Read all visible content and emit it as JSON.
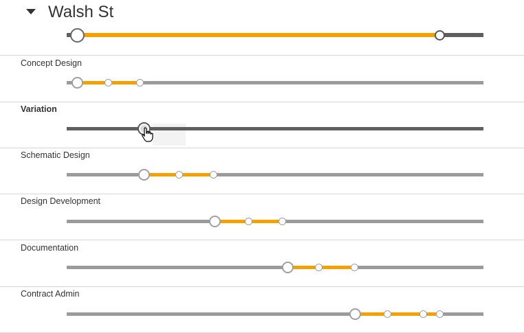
{
  "project": {
    "title": "Walsh St"
  },
  "main_timeline": {
    "start_fraction": 0.025,
    "end_fraction": 0.895,
    "colors": {
      "track": "#5f5f5f",
      "fill": "#f5a000"
    }
  },
  "phases": [
    {
      "label": "Concept Design",
      "bold": false,
      "handles": [
        0.025,
        0.1,
        0.176
      ]
    },
    {
      "label": "Variation",
      "bold": true,
      "handles": [
        0.186
      ],
      "active": true
    },
    {
      "label": "Schematic Design",
      "bold": false,
      "handles": [
        0.186,
        0.269,
        0.352
      ]
    },
    {
      "label": "Design Development",
      "bold": false,
      "handles": [
        0.355,
        0.437,
        0.518
      ]
    },
    {
      "label": "Documentation",
      "bold": false,
      "handles": [
        0.53,
        0.605,
        0.69
      ]
    },
    {
      "label": "Contract Admin",
      "bold": false,
      "handles": [
        0.693,
        0.77,
        0.855,
        0.896
      ]
    }
  ],
  "colors": {
    "accent": "#f5a000",
    "track": "#9b9b9b",
    "track_dark": "#5f5f5f",
    "divider": "#d6d6d6"
  },
  "icons": {
    "collapse": "caret-down-icon",
    "cursor": "hand-pointer-icon"
  }
}
